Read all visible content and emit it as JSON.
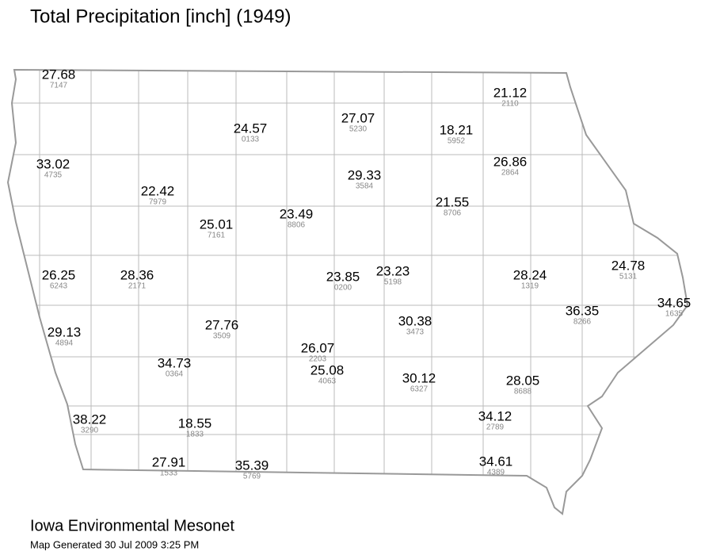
{
  "title": "Total Precipitation [inch] (1949)",
  "stations": [
    {
      "value": 27.68,
      "id": "7147"
    },
    {
      "value": 21.12,
      "id": "2110"
    },
    {
      "value": 24.57,
      "id": "0133"
    },
    {
      "value": 27.07,
      "id": "5230"
    },
    {
      "value": 18.21,
      "id": "5952"
    },
    {
      "value": 33.02,
      "id": "4735"
    },
    {
      "value": 29.33,
      "id": "3584"
    },
    {
      "value": 26.86,
      "id": "2864"
    },
    {
      "value": 22.42,
      "id": "7979"
    },
    {
      "value": 21.55,
      "id": "8706"
    },
    {
      "value": 23.49,
      "id": "8806"
    },
    {
      "value": 25.01,
      "id": "7161"
    },
    {
      "value": 26.25,
      "id": "6243"
    },
    {
      "value": 28.36,
      "id": "2171"
    },
    {
      "value": 23.85,
      "id": "0200"
    },
    {
      "value": 23.23,
      "id": "5198"
    },
    {
      "value": 28.24,
      "id": "1319"
    },
    {
      "value": 24.78,
      "id": "5131"
    },
    {
      "value": 34.65,
      "id": "1635"
    },
    {
      "value": 36.35,
      "id": "8266"
    },
    {
      "value": 29.13,
      "id": "4894"
    },
    {
      "value": 27.76,
      "id": "3509"
    },
    {
      "value": 30.38,
      "id": "3473"
    },
    {
      "value": 26.07,
      "id": "2203"
    },
    {
      "value": 34.73,
      "id": "0364"
    },
    {
      "value": 25.08,
      "id": "4063"
    },
    {
      "value": 30.12,
      "id": "6327"
    },
    {
      "value": 28.05,
      "id": "8688"
    },
    {
      "value": 38.22,
      "id": "3290"
    },
    {
      "value": 18.55,
      "id": "1833"
    },
    {
      "value": 34.12,
      "id": "2789"
    },
    {
      "value": 27.91,
      "id": "1533"
    },
    {
      "value": 35.39,
      "id": "5769"
    },
    {
      "value": 34.61,
      "id": "4389"
    }
  ],
  "footer": {
    "org": "Iowa Environmental Mesonet",
    "generated": "Map Generated 30 Jul 2009 3:25 PM"
  }
}
